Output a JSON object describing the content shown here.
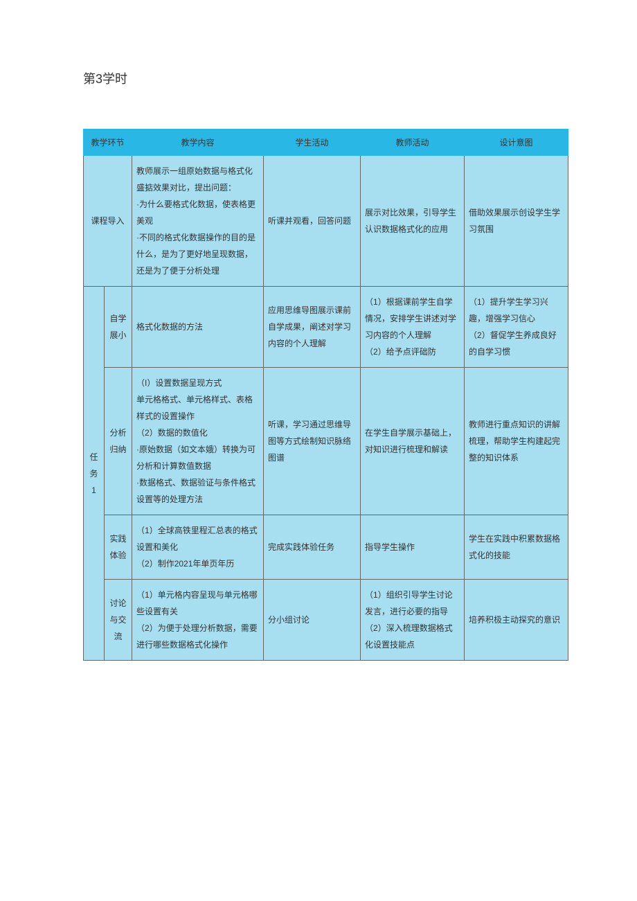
{
  "title": "第3学时",
  "headers": {
    "env": "教学环节",
    "content": "教学内容",
    "student": "学生活动",
    "teacher": "教师活动",
    "design": "设计意图"
  },
  "rows": {
    "intro": {
      "env": "课程导入",
      "content": "教师展示一组原始数据与格式化盛掂效果对比，提出问题：\n·为什么要格式化数据，使表格更美观\n·不同的格式化数据操作的目的是什么，是为了更好地呈现数据，还是为了便于分析处理",
      "student": "听课并观看，回答问题",
      "teacher": "展示对比效果，引导学生认识数据格式化的应用",
      "design": "借助效果展示创设学生学习氛围"
    },
    "task1_label": "任务1",
    "self_study": {
      "sub": "自学展小",
      "content": "格式化数据的方法",
      "student": "应用思维导图展示课前自学成果，阐述对学习内容的个人理解",
      "teacher": "（1）根据课前学生自学情况，安排学生讲述对学习内容的个人理解\n（2）给予点评础防",
      "design": "（1）提升学生学习兴趣，增强学习信心\n（2）督促学生养成良好的自学习惯"
    },
    "analysis": {
      "sub": "分析归纳",
      "content": "（I）设置数据呈现方式\n单元格格式、单元格样式、表格样式的设置操作\n（2）数据的数值化\n·原始数据（如文本娥）转换为可分析和计算数值数据\n·数据格式、数据验证与条件格式设置等的处理方法",
      "student": "听课，学习通过思维导图等方式绘制知识脉络图谱",
      "teacher": "在学生自学展示基础上，对知识进行梳理和解读",
      "design": "教师进行重点知识的讲解梳理，帮助学生构建起完整的知识体系"
    },
    "practice": {
      "sub": "实践体验",
      "content": "（1）全球高铁里程汇总表的格式设置和美化\n（2）制作2021年单页年历",
      "student": "完成实践体验任务",
      "teacher": "指导学生操作",
      "design": "学生在实践中积累数据格式化的技能"
    },
    "discuss": {
      "sub": "讨论与交流",
      "content": "（1）单元格内容呈现与单元格哪些设置有关\n（2）为便于处理分析数据，需要进行哪些数据格式化操作",
      "student": "分小组讨论",
      "teacher": "（1）组织引导学生讨论发言，进行必要的指导\n（2）深入梳理数据格式化设置技能点",
      "design": "培养积极主动探究的意识"
    }
  },
  "colors": {
    "header_bg": "#29b8e6",
    "cell_bg": "#a8dff0",
    "border": "#666666",
    "text": "#333333"
  }
}
